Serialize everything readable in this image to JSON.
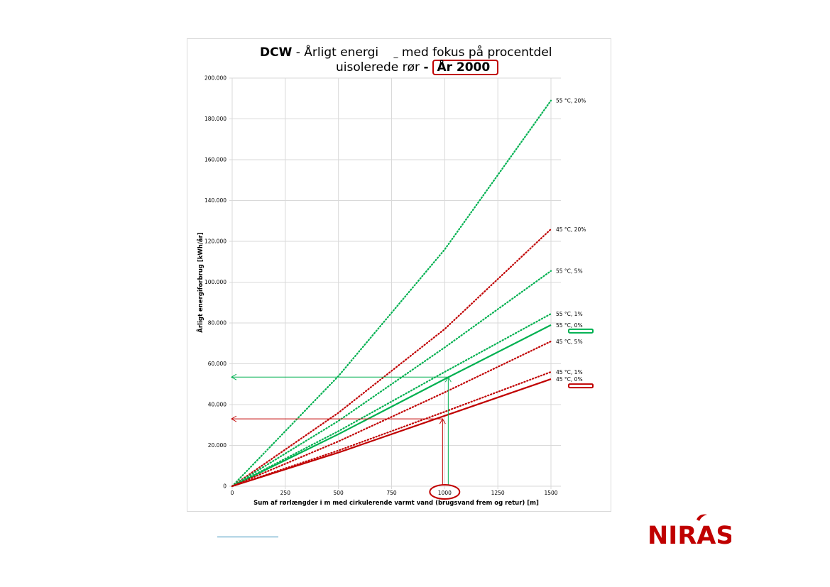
{
  "title": {
    "prefix_bold": "DCW",
    "line1_rest": " - Årligt energi",
    "line1_hidden_marker": "_",
    "line1_end": " med fokus på procentdel",
    "line2_start": "uisolerede rør ",
    "line2_dash": "- ",
    "year": "År 2000"
  },
  "logo": {
    "text": "NIRAS",
    "color": "#c00000"
  },
  "colors": {
    "green": "#00b050",
    "red": "#c00000",
    "grid": "#d9d9d9"
  },
  "chart_data": {
    "type": "line",
    "xlabel": "Sum af rørlængder i m med cirkulerende varmt vand (brugsvand frem og retur) [m]",
    "ylabel": "Årligt energiforbrug [kWh/år]",
    "xlim": [
      0,
      1500
    ],
    "ylim": [
      0,
      200000
    ],
    "x_ticks": [
      "0",
      "250",
      "500",
      "750",
      "1000",
      "1250",
      "1500"
    ],
    "y_ticks": [
      "0",
      "20.000",
      "40.000",
      "60.000",
      "80.000",
      "100.000",
      "120.000",
      "140.000",
      "160.000",
      "180.000",
      "200.000"
    ],
    "grid": true,
    "series": [
      {
        "name": "55 °C, 20%",
        "color": "#00b050",
        "style": "dotted",
        "x": [
          0,
          500,
          1000,
          1500
        ],
        "y": [
          0,
          54000,
          116000,
          189000
        ]
      },
      {
        "name": "45 °C, 20%",
        "color": "#c00000",
        "style": "dotted",
        "x": [
          0,
          500,
          1000,
          1500
        ],
        "y": [
          0,
          36000,
          77000,
          126000
        ]
      },
      {
        "name": "55 °C, 5%",
        "color": "#00b050",
        "style": "dotted",
        "x": [
          0,
          500,
          1000,
          1500
        ],
        "y": [
          0,
          32000,
          68000,
          105500
        ]
      },
      {
        "name": "55 °C, 1%",
        "color": "#00b050",
        "style": "dotted",
        "x": [
          0,
          500,
          1000,
          1500
        ],
        "y": [
          0,
          27000,
          56000,
          84500
        ]
      },
      {
        "name": "55 °C, 0%",
        "color": "#00b050",
        "style": "solid",
        "x": [
          0,
          500,
          1000,
          1500
        ],
        "y": [
          0,
          25500,
          52500,
          79000
        ]
      },
      {
        "name": "45 °C, 5%",
        "color": "#c00000",
        "style": "dotted",
        "x": [
          0,
          500,
          1000,
          1500
        ],
        "y": [
          0,
          22000,
          46000,
          71000
        ]
      },
      {
        "name": "45 °C, 1%",
        "color": "#c00000",
        "style": "dotted",
        "x": [
          0,
          500,
          1000,
          1500
        ],
        "y": [
          0,
          17500,
          36500,
          56000
        ]
      },
      {
        "name": "45 °C, 0%",
        "color": "#c00000",
        "style": "solid",
        "x": [
          0,
          500,
          1000,
          1500
        ],
        "y": [
          0,
          16500,
          34500,
          52500
        ]
      }
    ],
    "annotations": [
      {
        "type": "reading",
        "color": "#00b050",
        "x": 1000,
        "y": 53500
      },
      {
        "type": "reading",
        "color": "#c00000",
        "x": 1000,
        "y": 33000
      },
      {
        "type": "highlight-x-tick",
        "color": "#c00000",
        "x": 1000
      },
      {
        "type": "highlight-label",
        "color": "#00b050",
        "series": "55 °C, 0%"
      },
      {
        "type": "highlight-label",
        "color": "#c00000",
        "series": "45 °C, 0%"
      }
    ]
  }
}
